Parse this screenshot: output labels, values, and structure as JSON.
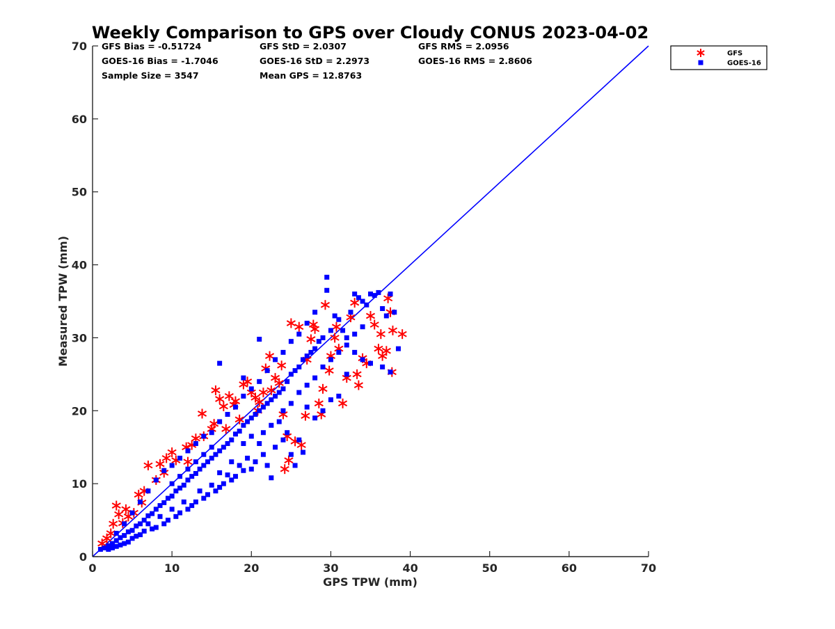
{
  "chart_data": {
    "type": "scatter",
    "title": "Weekly Comparison to GPS over Cloudy CONUS 2023-04-02",
    "xlabel": "GPS TPW (mm)",
    "ylabel": "Measured TPW (mm)",
    "xlim": [
      0,
      70
    ],
    "ylim": [
      0,
      70
    ],
    "xticks": [
      "0",
      "10",
      "20",
      "30",
      "40",
      "50",
      "60",
      "70"
    ],
    "yticks": [
      "0",
      "10",
      "20",
      "30",
      "40",
      "50",
      "60",
      "70"
    ],
    "grid": false,
    "legend_position": "outside-top-right",
    "reference_line": {
      "x": [
        0,
        70
      ],
      "y": [
        0,
        70
      ],
      "color": "#0000ff"
    },
    "stats": [
      [
        "GFS Bias = -0.51724",
        "GFS StD = 2.0307",
        "GFS RMS = 2.0956"
      ],
      [
        "GOES-16 Bias = -1.7046",
        "GOES-16 StD = 2.2973",
        "GOES-16 RMS = 2.8606"
      ],
      [
        "Sample Size = 3547",
        "Mean GPS = 12.8763",
        ""
      ]
    ],
    "series": [
      {
        "name": "GFS",
        "marker": "asterisk",
        "color": "#ff0000",
        "points": [
          [
            1.2,
            1.8
          ],
          [
            1.8,
            2.5
          ],
          [
            2.3,
            3.2
          ],
          [
            2.6,
            4.5
          ],
          [
            3.0,
            7.0
          ],
          [
            3.3,
            5.8
          ],
          [
            3.8,
            4.6
          ],
          [
            4.5,
            5.5
          ],
          [
            5.2,
            6.0
          ],
          [
            5.8,
            8.5
          ],
          [
            6.2,
            7.4
          ],
          [
            7.0,
            12.5
          ],
          [
            8.5,
            12.7
          ],
          [
            9.3,
            13.5
          ],
          [
            10.0,
            14.3
          ],
          [
            11.8,
            15.0
          ],
          [
            12.5,
            15.3
          ],
          [
            13.0,
            16.2
          ],
          [
            14.0,
            16.5
          ],
          [
            13.8,
            19.6
          ],
          [
            15.0,
            17.5
          ],
          [
            15.3,
            18.2
          ],
          [
            15.5,
            22.8
          ],
          [
            16.0,
            21.6
          ],
          [
            16.5,
            20.6
          ],
          [
            17.2,
            22.0
          ],
          [
            17.8,
            20.8
          ],
          [
            18.0,
            21.3
          ],
          [
            19.0,
            23.6
          ],
          [
            19.5,
            24.0
          ],
          [
            20.0,
            22.5
          ],
          [
            20.5,
            21.8
          ],
          [
            21.0,
            21.2
          ],
          [
            21.5,
            22.5
          ],
          [
            21.8,
            25.8
          ],
          [
            22.3,
            27.5
          ],
          [
            23.0,
            24.5
          ],
          [
            23.5,
            23.8
          ],
          [
            24.0,
            19.5
          ],
          [
            24.2,
            12.0
          ],
          [
            24.5,
            16.5
          ],
          [
            24.7,
            13.2
          ],
          [
            25.0,
            32.0
          ],
          [
            25.5,
            15.8
          ],
          [
            26.0,
            31.5
          ],
          [
            26.3,
            15.3
          ],
          [
            26.8,
            19.3
          ],
          [
            27.0,
            27.0
          ],
          [
            27.5,
            29.8
          ],
          [
            28.0,
            31.2
          ],
          [
            28.5,
            21.0
          ],
          [
            28.8,
            19.5
          ],
          [
            29.0,
            23.0
          ],
          [
            29.3,
            34.5
          ],
          [
            29.8,
            25.5
          ],
          [
            30.0,
            27.5
          ],
          [
            30.5,
            30.0
          ],
          [
            31.0,
            28.5
          ],
          [
            31.5,
            21.0
          ],
          [
            32.0,
            24.5
          ],
          [
            32.5,
            32.8
          ],
          [
            33.0,
            34.8
          ],
          [
            33.3,
            25.0
          ],
          [
            33.5,
            23.5
          ],
          [
            34.0,
            27.2
          ],
          [
            34.5,
            26.5
          ],
          [
            35.0,
            33.0
          ],
          [
            35.5,
            31.8
          ],
          [
            36.0,
            28.5
          ],
          [
            36.5,
            27.5
          ],
          [
            37.0,
            28.2
          ],
          [
            37.5,
            33.5
          ],
          [
            37.8,
            31.0
          ],
          [
            37.7,
            25.3
          ],
          [
            37.2,
            35.4
          ],
          [
            39.0,
            30.5
          ],
          [
            36.3,
            30.5
          ],
          [
            30.7,
            31.5
          ],
          [
            22.5,
            22.8
          ],
          [
            23.8,
            26.2
          ],
          [
            10.5,
            13.2
          ],
          [
            8.0,
            10.5
          ],
          [
            12.0,
            13.0
          ],
          [
            16.8,
            17.5
          ],
          [
            18.5,
            18.8
          ],
          [
            20.8,
            20.0
          ],
          [
            4.2,
            6.5
          ],
          [
            6.5,
            9.0
          ],
          [
            9.0,
            11.5
          ],
          [
            27.8,
            31.8
          ]
        ]
      },
      {
        "name": "GOES-16",
        "marker": "square",
        "color": "#0000ff",
        "points": [
          [
            1.0,
            1.0
          ],
          [
            1.5,
            1.2
          ],
          [
            2.0,
            1.5
          ],
          [
            2.5,
            1.8
          ],
          [
            3.0,
            2.2
          ],
          [
            3.5,
            2.6
          ],
          [
            4.0,
            2.9
          ],
          [
            4.5,
            3.4
          ],
          [
            5.0,
            3.6
          ],
          [
            5.5,
            4.2
          ],
          [
            6.0,
            4.5
          ],
          [
            6.5,
            5.0
          ],
          [
            7.0,
            5.6
          ],
          [
            7.5,
            5.9
          ],
          [
            8.0,
            6.5
          ],
          [
            8.5,
            7.0
          ],
          [
            9.0,
            7.4
          ],
          [
            9.5,
            8.0
          ],
          [
            10.0,
            8.3
          ],
          [
            10.5,
            9.0
          ],
          [
            11.0,
            9.4
          ],
          [
            11.5,
            9.8
          ],
          [
            12.0,
            10.5
          ],
          [
            12.5,
            11.0
          ],
          [
            13.0,
            11.4
          ],
          [
            13.5,
            12.0
          ],
          [
            14.0,
            12.5
          ],
          [
            14.5,
            13.0
          ],
          [
            15.0,
            13.5
          ],
          [
            15.5,
            14.0
          ],
          [
            16.0,
            14.5
          ],
          [
            16.5,
            15.0
          ],
          [
            17.0,
            15.5
          ],
          [
            17.5,
            16.0
          ],
          [
            18.0,
            16.8
          ],
          [
            18.5,
            17.2
          ],
          [
            19.0,
            18.0
          ],
          [
            19.5,
            18.5
          ],
          [
            20.0,
            19.0
          ],
          [
            20.5,
            19.5
          ],
          [
            21.0,
            20.0
          ],
          [
            21.5,
            20.5
          ],
          [
            22.0,
            21.0
          ],
          [
            22.5,
            21.5
          ],
          [
            23.0,
            22.0
          ],
          [
            23.5,
            22.5
          ],
          [
            24.0,
            23.0
          ],
          [
            24.5,
            24.0
          ],
          [
            25.0,
            25.0
          ],
          [
            25.5,
            25.5
          ],
          [
            26.0,
            26.0
          ],
          [
            26.5,
            27.0
          ],
          [
            27.0,
            27.5
          ],
          [
            27.5,
            28.0
          ],
          [
            28.0,
            28.5
          ],
          [
            28.5,
            29.5
          ],
          [
            29.0,
            30.0
          ],
          [
            29.5,
            36.5
          ],
          [
            29.5,
            38.3
          ],
          [
            30.0,
            31.0
          ],
          [
            30.5,
            33.0
          ],
          [
            31.0,
            32.5
          ],
          [
            31.5,
            31.0
          ],
          [
            32.0,
            30.0
          ],
          [
            32.5,
            33.5
          ],
          [
            33.0,
            36.0
          ],
          [
            33.5,
            35.5
          ],
          [
            34.0,
            35.0
          ],
          [
            34.5,
            34.5
          ],
          [
            35.0,
            36.0
          ],
          [
            35.5,
            35.8
          ],
          [
            36.0,
            36.2
          ],
          [
            36.5,
            34.0
          ],
          [
            37.0,
            33.0
          ],
          [
            37.5,
            36.0
          ],
          [
            38.0,
            33.5
          ],
          [
            38.5,
            28.5
          ],
          [
            37.5,
            25.3
          ],
          [
            36.5,
            26.0
          ],
          [
            35.0,
            26.5
          ],
          [
            34.0,
            27.0
          ],
          [
            33.0,
            28.0
          ],
          [
            32.0,
            25.0
          ],
          [
            31.0,
            22.0
          ],
          [
            30.0,
            21.5
          ],
          [
            29.0,
            20.0
          ],
          [
            28.0,
            19.0
          ],
          [
            27.0,
            20.5
          ],
          [
            26.5,
            14.3
          ],
          [
            26.0,
            16.0
          ],
          [
            25.5,
            12.5
          ],
          [
            25.0,
            14.0
          ],
          [
            24.5,
            17.0
          ],
          [
            24.0,
            16.0
          ],
          [
            23.5,
            18.5
          ],
          [
            23.0,
            15.0
          ],
          [
            22.5,
            10.8
          ],
          [
            22.0,
            12.5
          ],
          [
            21.5,
            14.0
          ],
          [
            21.0,
            15.5
          ],
          [
            20.5,
            13.0
          ],
          [
            20.0,
            12.0
          ],
          [
            19.5,
            13.5
          ],
          [
            19.0,
            11.8
          ],
          [
            18.5,
            12.5
          ],
          [
            18.0,
            11.0
          ],
          [
            17.5,
            10.5
          ],
          [
            17.0,
            11.2
          ],
          [
            16.5,
            10.0
          ],
          [
            16.0,
            9.5
          ],
          [
            15.5,
            9.0
          ],
          [
            15.0,
            9.8
          ],
          [
            14.5,
            8.5
          ],
          [
            14.0,
            8.0
          ],
          [
            13.5,
            9.0
          ],
          [
            13.0,
            7.5
          ],
          [
            12.5,
            7.0
          ],
          [
            12.0,
            6.5
          ],
          [
            11.5,
            7.5
          ],
          [
            11.0,
            6.0
          ],
          [
            10.5,
            5.5
          ],
          [
            10.0,
            6.5
          ],
          [
            9.5,
            5.0
          ],
          [
            9.0,
            4.5
          ],
          [
            8.5,
            5.5
          ],
          [
            8.0,
            4.0
          ],
          [
            7.5,
            3.8
          ],
          [
            7.0,
            4.5
          ],
          [
            6.5,
            3.5
          ],
          [
            6.0,
            3.0
          ],
          [
            5.5,
            2.8
          ],
          [
            5.0,
            2.5
          ],
          [
            4.5,
            2.0
          ],
          [
            4.0,
            1.8
          ],
          [
            3.5,
            1.6
          ],
          [
            3.0,
            1.4
          ],
          [
            2.5,
            1.2
          ],
          [
            2.0,
            1.0
          ],
          [
            7.0,
            9.0
          ],
          [
            8.0,
            10.5
          ],
          [
            9.0,
            11.8
          ],
          [
            10.0,
            12.5
          ],
          [
            11.0,
            13.5
          ],
          [
            12.0,
            14.5
          ],
          [
            13.0,
            15.5
          ],
          [
            14.0,
            16.5
          ],
          [
            15.0,
            17.0
          ],
          [
            16.0,
            18.5
          ],
          [
            17.0,
            19.5
          ],
          [
            18.0,
            20.5
          ],
          [
            19.0,
            22.0
          ],
          [
            20.0,
            23.0
          ],
          [
            21.0,
            24.0
          ],
          [
            22.0,
            25.5
          ],
          [
            23.0,
            27.0
          ],
          [
            24.0,
            28.0
          ],
          [
            25.0,
            29.5
          ],
          [
            26.0,
            30.5
          ],
          [
            27.0,
            32.0
          ],
          [
            28.0,
            33.5
          ],
          [
            16.0,
            26.5
          ],
          [
            19.0,
            24.5
          ],
          [
            21.0,
            29.8
          ],
          [
            16.0,
            11.5
          ],
          [
            17.5,
            13.0
          ],
          [
            19.0,
            15.5
          ],
          [
            20.0,
            16.5
          ],
          [
            21.5,
            17.0
          ],
          [
            22.5,
            18.0
          ],
          [
            24.0,
            20.0
          ],
          [
            25.0,
            21.0
          ],
          [
            26.0,
            22.5
          ],
          [
            27.0,
            23.5
          ],
          [
            28.0,
            24.5
          ],
          [
            29.0,
            26.0
          ],
          [
            30.0,
            27.0
          ],
          [
            31.0,
            28.0
          ],
          [
            32.0,
            29.0
          ],
          [
            33.0,
            30.5
          ],
          [
            34.0,
            31.5
          ],
          [
            6.0,
            7.5
          ],
          [
            5.0,
            6.0
          ],
          [
            4.0,
            4.5
          ],
          [
            3.0,
            3.2
          ],
          [
            12.0,
            12.0
          ],
          [
            13.0,
            13.0
          ],
          [
            14.0,
            14.0
          ],
          [
            15.0,
            15.0
          ],
          [
            11.0,
            11.0
          ],
          [
            10.0,
            10.0
          ]
        ]
      }
    ]
  }
}
